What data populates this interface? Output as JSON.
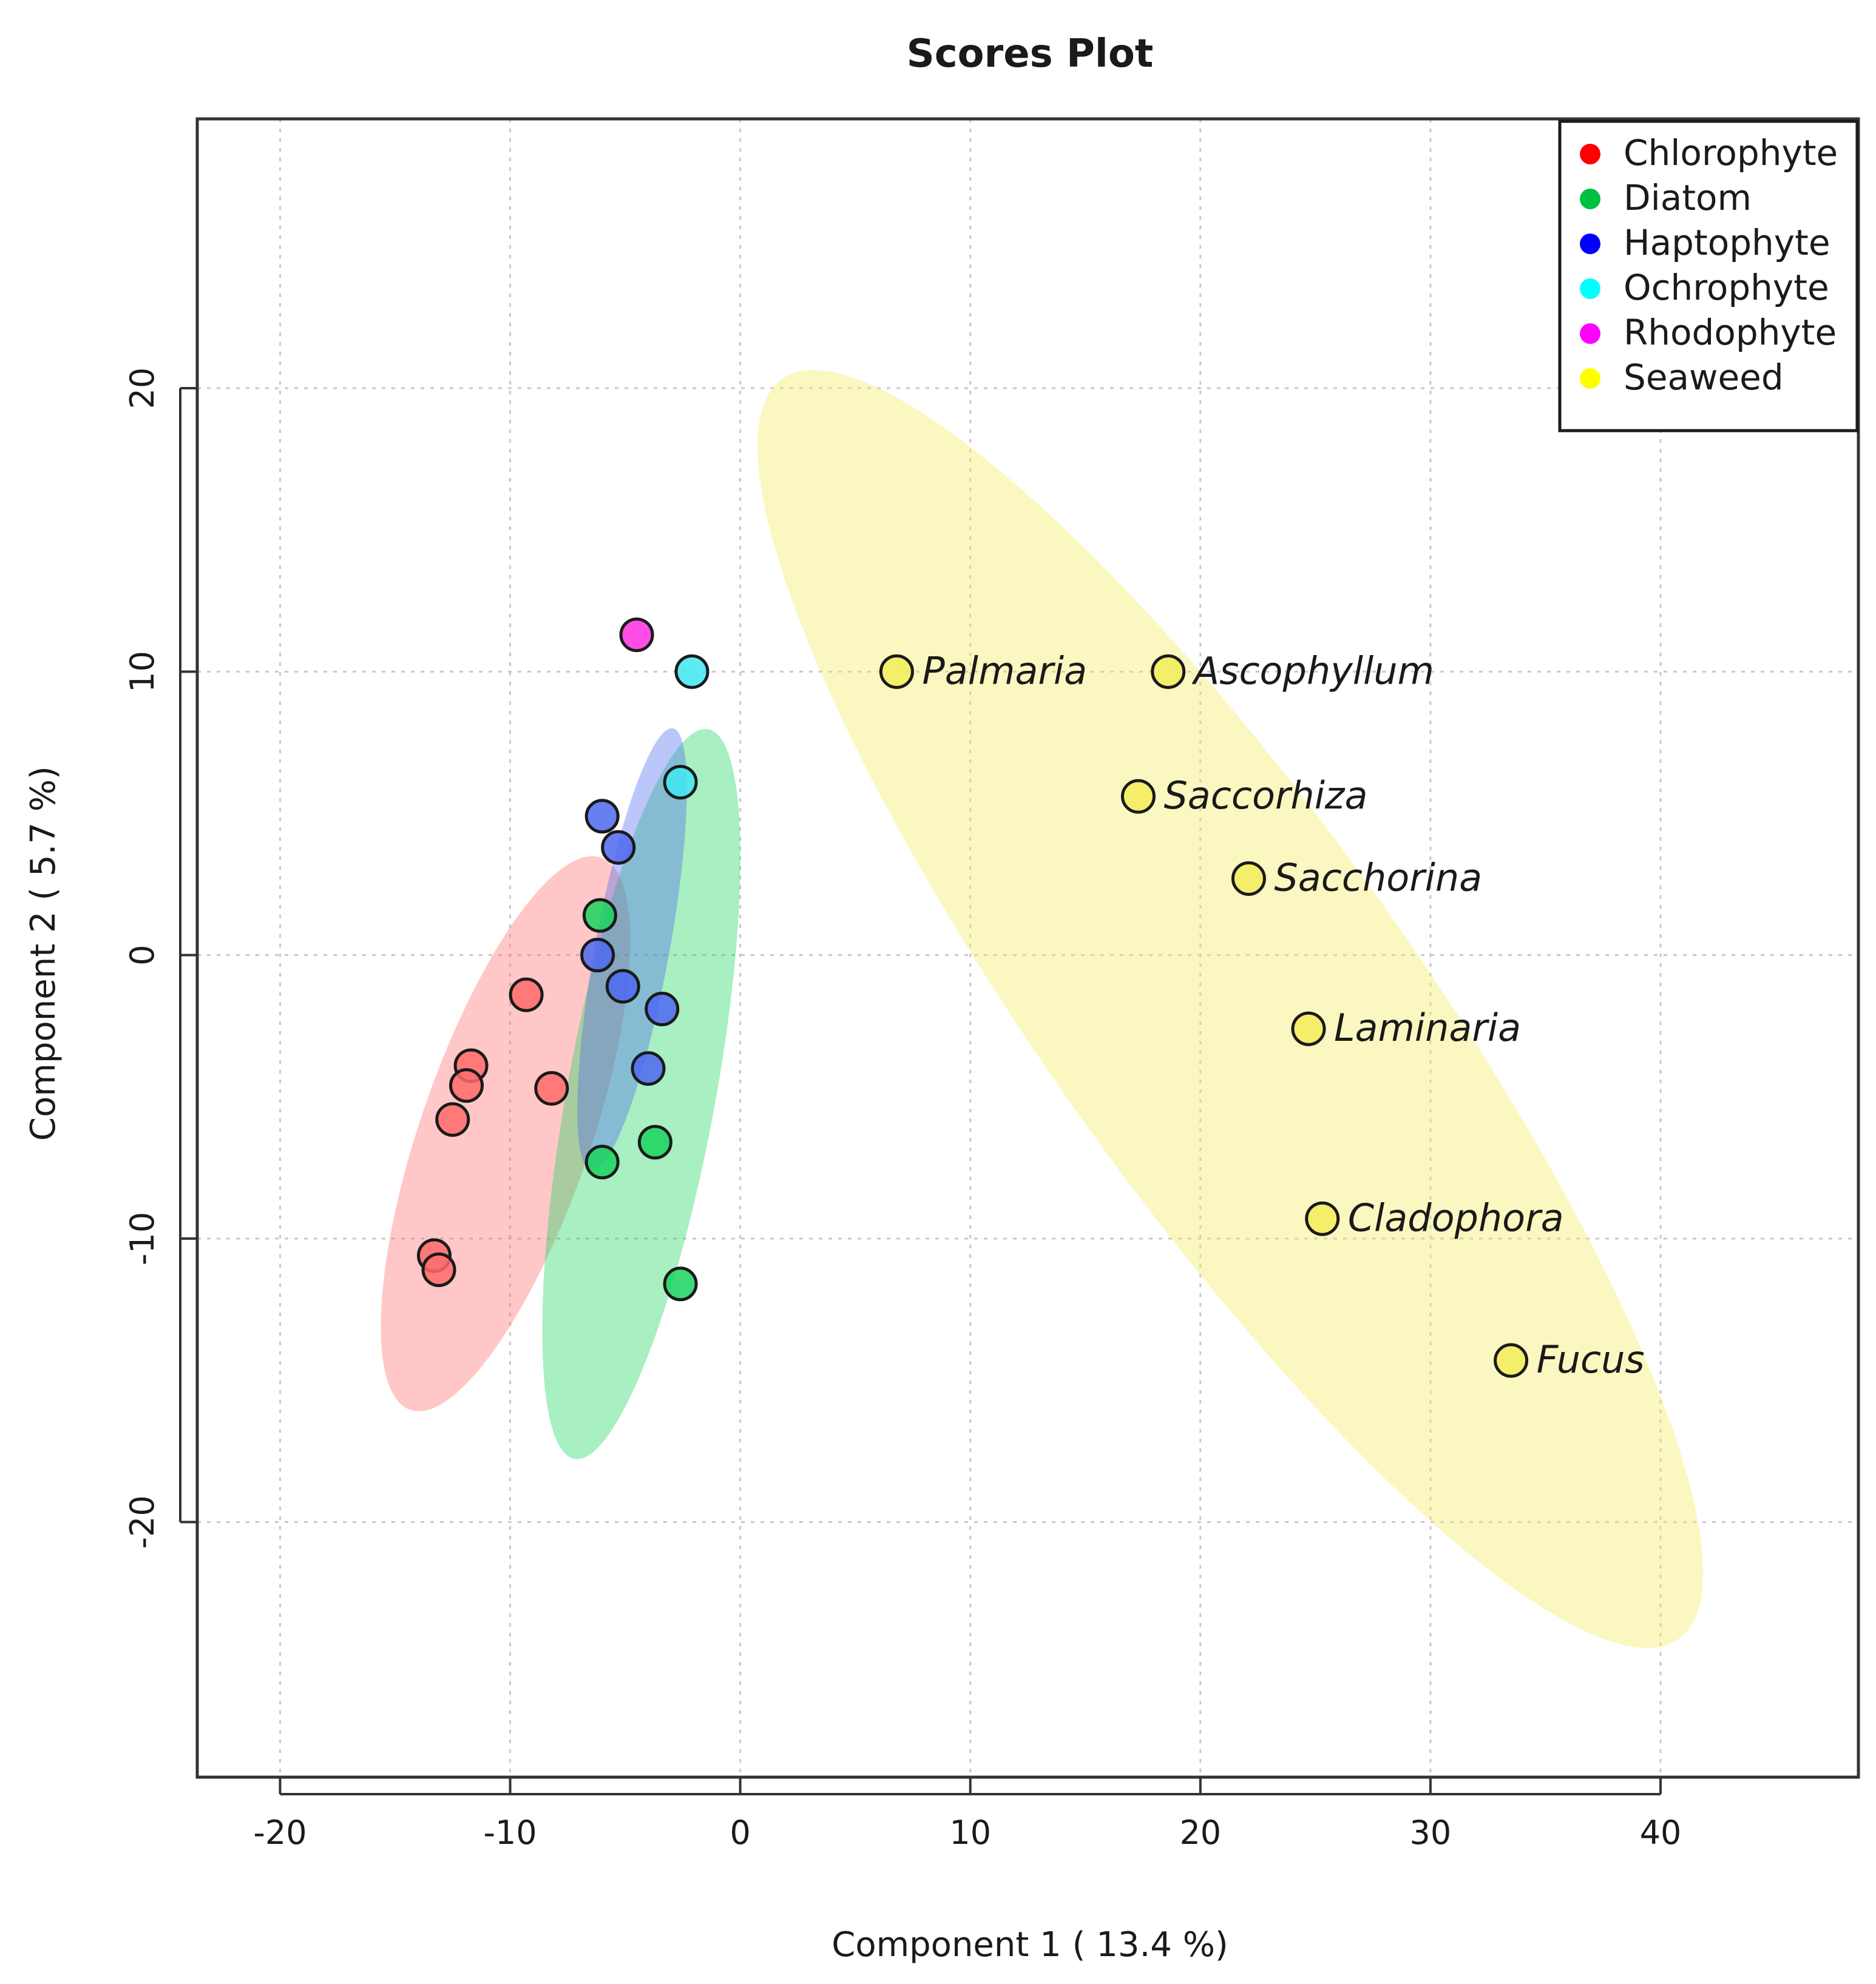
{
  "chart_data": {
    "type": "scatter",
    "title": "Scores Plot",
    "xlabel": "Component 1 ( 13.4 %)",
    "ylabel": "Component 2 ( 5.7 %)",
    "xlim": [
      -23.6,
      48.6
    ],
    "ylim": [
      -29,
      29.5
    ],
    "xticks": [
      -20,
      -10,
      0,
      10,
      20,
      30,
      40
    ],
    "yticks": [
      -20,
      -10,
      0,
      10,
      20
    ],
    "xtick_labels": [
      "-20",
      "-10",
      "0",
      "10",
      "20",
      "30",
      "40"
    ],
    "ytick_labels": [
      "-20",
      "-10",
      "0",
      "10",
      "20"
    ],
    "grid": true,
    "legend_position": "top-right",
    "series": [
      {
        "name": "Chlorophyte",
        "color": "#ff0000",
        "fill": "#ff6b6b",
        "ellipse": {
          "center": [
            -10.2,
            -6.3
          ],
          "semi_major": 10.6,
          "semi_minor": 3.6,
          "angle_deg": 66
        },
        "points": [
          [
            -9.3,
            -1.4
          ],
          [
            -11.7,
            -3.9
          ],
          [
            -11.9,
            -4.6
          ],
          [
            -12.5,
            -5.8
          ],
          [
            -8.2,
            -4.7
          ],
          [
            -13.3,
            -10.6
          ],
          [
            -13.1,
            -11.1
          ]
        ]
      },
      {
        "name": "Diatom",
        "color": "#00c040",
        "fill": "#1ad45e",
        "ellipse": {
          "center": [
            -4.3,
            -4.9
          ],
          "semi_major": 13.2,
          "semi_minor": 3.2,
          "angle_deg": 77
        },
        "points": [
          [
            -6.1,
            1.4
          ],
          [
            -6.0,
            -7.3
          ],
          [
            -3.7,
            -6.6
          ],
          [
            -2.6,
            -11.6
          ]
        ]
      },
      {
        "name": "Haptophyte",
        "color": "#0000ff",
        "fill": "#4d68f0",
        "ellipse": {
          "center": [
            -4.7,
            0.2
          ],
          "semi_major": 8.0,
          "semi_minor": 1.6,
          "angle_deg": 77
        },
        "points": [
          [
            -6.0,
            4.9
          ],
          [
            -5.3,
            3.8
          ],
          [
            -6.2,
            0.0
          ],
          [
            -5.1,
            -1.1
          ],
          [
            -3.4,
            -1.9
          ],
          [
            -4.0,
            -4.0
          ]
        ]
      },
      {
        "name": "Ochrophyte",
        "color": "#00ffff",
        "fill": "#40e8f0",
        "ellipse": null,
        "points": [
          [
            -2.1,
            10.0
          ],
          [
            -2.6,
            6.1
          ]
        ]
      },
      {
        "name": "Rhodophyte",
        "color": "#ff00ff",
        "fill": "#ff2ee0",
        "ellipse": null,
        "points": [
          [
            -4.5,
            11.3
          ]
        ]
      },
      {
        "name": "Seaweed",
        "color": "#ffff00",
        "fill": "#f2ec5a",
        "ellipse": {
          "center": [
            21.3,
            -1.9
          ],
          "semi_major": 29.6,
          "semi_minor": 7.4,
          "angle_deg": -48
        },
        "points": [
          [
            6.8,
            10.0
          ],
          [
            18.6,
            10.0
          ],
          [
            17.3,
            5.6
          ],
          [
            22.1,
            2.7
          ],
          [
            24.7,
            -2.6
          ],
          [
            25.3,
            -9.3
          ],
          [
            33.5,
            -14.3
          ]
        ],
        "point_labels": [
          "Palmaria",
          "Ascophyllum",
          "Saccorhiza",
          "Sacchorina",
          "Laminaria",
          "Cladophora",
          "Fucus"
        ]
      }
    ]
  }
}
